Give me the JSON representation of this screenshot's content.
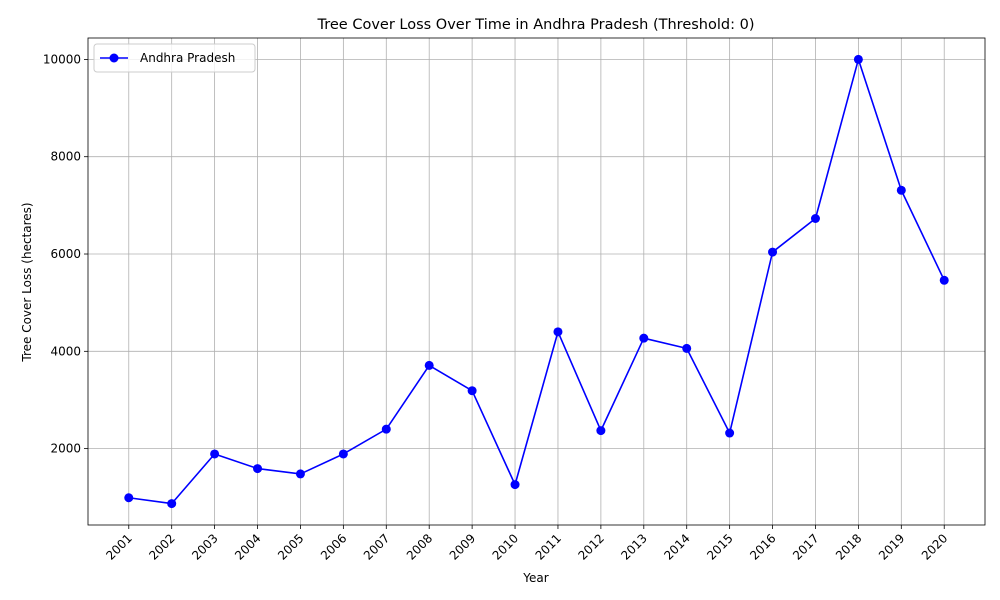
{
  "chart_data": {
    "type": "line",
    "title": "Tree Cover Loss Over Time in Andhra Pradesh (Threshold: 0)",
    "xlabel": "Year",
    "ylabel": "Tree Cover Loss (hectares)",
    "categories": [
      "2001",
      "2002",
      "2003",
      "2004",
      "2005",
      "2006",
      "2007",
      "2008",
      "2009",
      "2010",
      "2011",
      "2012",
      "2013",
      "2014",
      "2015",
      "2016",
      "2017",
      "2018",
      "2019",
      "2020"
    ],
    "series": [
      {
        "name": "Andhra Pradesh",
        "color": "#0000ff",
        "marker": "circle",
        "values": [
          990,
          870,
          1890,
          1590,
          1480,
          1890,
          2400,
          3710,
          3190,
          1260,
          4400,
          2370,
          4270,
          4060,
          2320,
          6040,
          6730,
          10000,
          7310,
          5460
        ]
      }
    ],
    "ylim": [
      430,
      10440
    ],
    "yticks": [
      2000,
      4000,
      6000,
      8000,
      10000
    ],
    "grid": true,
    "legend": "top-left",
    "x_tick_rotation": 45
  }
}
